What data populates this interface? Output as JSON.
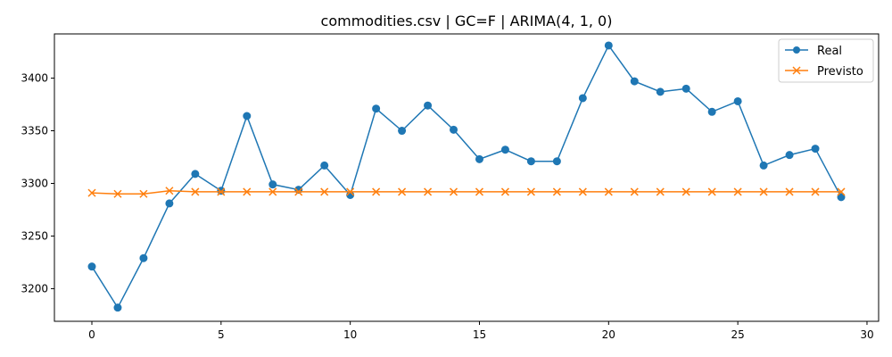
{
  "chart_data": {
    "type": "line",
    "title": "commodities.csv | GC=F | ARIMA(4, 1, 0)",
    "xlabel": "",
    "ylabel": "",
    "xlim": [
      -1.45,
      30.45
    ],
    "ylim": [
      3169,
      3442
    ],
    "xticks": [
      0,
      5,
      10,
      15,
      20,
      25,
      30
    ],
    "yticks": [
      3200,
      3250,
      3300,
      3350,
      3400
    ],
    "grid": false,
    "legend_position": "top-right",
    "x": [
      0,
      1,
      2,
      3,
      4,
      5,
      6,
      7,
      8,
      9,
      10,
      11,
      12,
      13,
      14,
      15,
      16,
      17,
      18,
      19,
      20,
      21,
      22,
      23,
      24,
      25,
      26,
      27,
      28,
      29
    ],
    "series": [
      {
        "name": "Real",
        "color": "#1f77b4",
        "marker": "circle",
        "values": [
          3221,
          3182,
          3229,
          3281,
          3309,
          3293,
          3364,
          3299,
          3294,
          3317,
          3289,
          3371,
          3350,
          3374,
          3351,
          3323,
          3332,
          3321,
          3321,
          3381,
          3431,
          3397,
          3387,
          3390,
          3368,
          3378,
          3317,
          3327,
          3333,
          3287
        ]
      },
      {
        "name": "Previsto",
        "color": "#ff7f0e",
        "marker": "x",
        "values": [
          3291,
          3290,
          3290,
          3293,
          3292,
          3292,
          3292,
          3292,
          3292,
          3292,
          3292,
          3292,
          3292,
          3292,
          3292,
          3292,
          3292,
          3292,
          3292,
          3292,
          3292,
          3292,
          3292,
          3292,
          3292,
          3292,
          3292,
          3292,
          3292,
          3292
        ]
      }
    ]
  }
}
